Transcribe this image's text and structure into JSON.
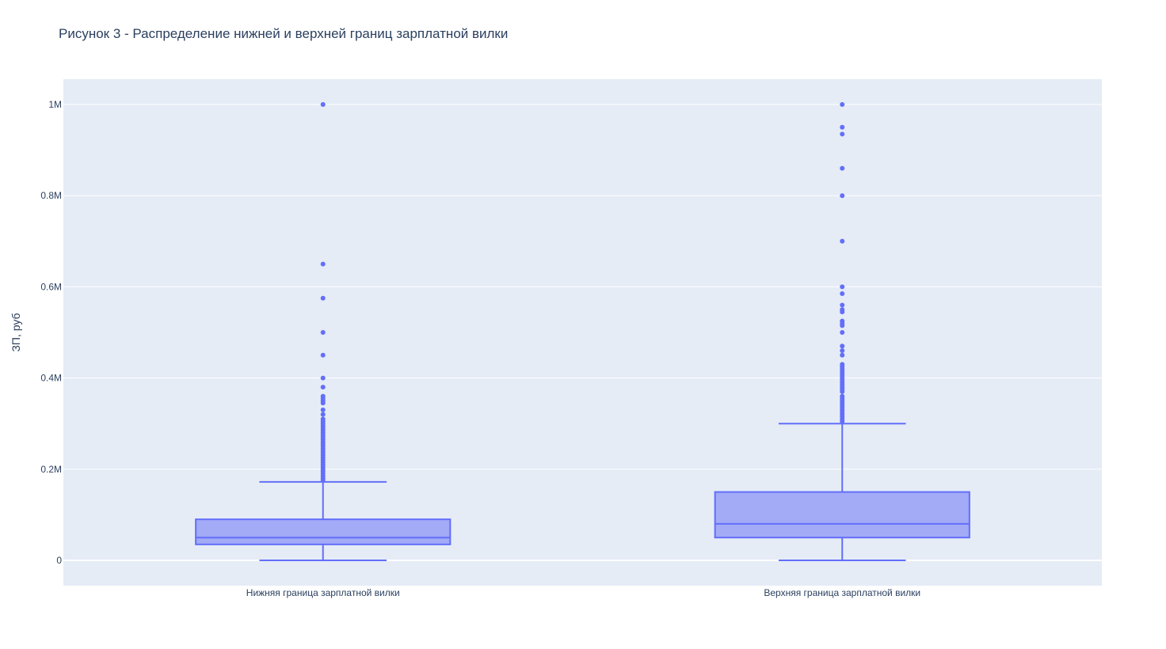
{
  "chart_data": {
    "type": "box",
    "title": "Рисунок 3 - Распределение нижней и верхней границ зарплатной вилки",
    "xlabel": "",
    "ylabel": "ЗП, руб",
    "ylim": [
      -55000,
      1055000
    ],
    "yticks": [
      0,
      200000,
      400000,
      600000,
      800000,
      1000000
    ],
    "ytick_labels": [
      "0",
      "0.2M",
      "0.4M",
      "0.6M",
      "0.8M",
      "1M"
    ],
    "grid": true,
    "legend": "none",
    "colors": {
      "box_line": "#636efa",
      "box_fill": "#a3aaf6",
      "plot_bg": "#e5ecf6",
      "grid": "#ffffff",
      "text": "#2a3f5f"
    },
    "categories": [
      "Нижняя граница зарплатной вилки",
      "Верхняя граница зарплатной вилки"
    ],
    "boxes": [
      {
        "category": "Нижняя граница зарплатной вилки",
        "min": 0,
        "q1": 35000,
        "median": 50000,
        "q3": 90000,
        "upper_fence": 172000,
        "outliers": [
          1000000,
          650000,
          575000,
          500000,
          450000,
          400000,
          380000,
          360000,
          355000,
          350000,
          345000,
          330000,
          320000,
          310000,
          305000,
          300000,
          295000,
          290000,
          285000,
          280000,
          275000,
          270000,
          265000,
          260000,
          255000,
          250000,
          245000,
          240000,
          235000,
          230000,
          225000,
          220000,
          215000,
          210000,
          205000,
          200000,
          195000,
          190000,
          185000,
          180000,
          176000
        ]
      },
      {
        "category": "Верхняя граница зарплатной вилки",
        "min": 0,
        "q1": 50000,
        "median": 80000,
        "q3": 150000,
        "upper_fence": 300000,
        "outliers": [
          1000000,
          950000,
          935000,
          860000,
          800000,
          700000,
          600000,
          585000,
          560000,
          550000,
          545000,
          525000,
          520000,
          515000,
          500000,
          470000,
          460000,
          450000,
          430000,
          425000,
          420000,
          415000,
          410000,
          405000,
          400000,
          395000,
          390000,
          385000,
          380000,
          375000,
          370000,
          360000,
          355000,
          350000,
          345000,
          340000,
          335000,
          330000,
          325000,
          320000,
          315000,
          310000,
          305000
        ]
      }
    ]
  }
}
